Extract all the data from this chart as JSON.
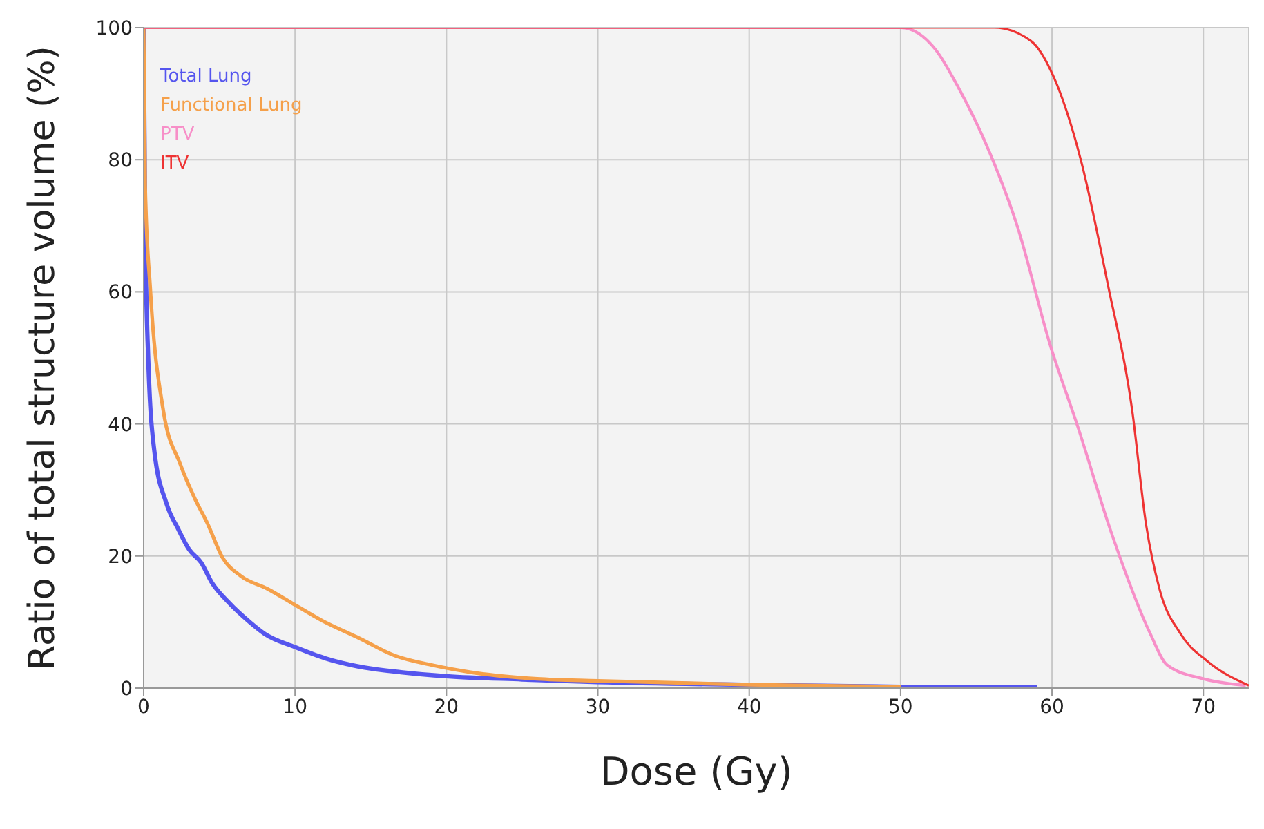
{
  "chart_data": {
    "type": "line",
    "xlabel": "Dose (Gy)",
    "ylabel": "Ratio of total structure volume (%)",
    "xlim": [
      0,
      73
    ],
    "xticks": [
      0,
      10,
      20,
      30,
      40,
      50,
      60,
      70
    ],
    "ylim": [
      0,
      100
    ],
    "yticks": [
      0,
      20,
      40,
      60,
      80,
      100
    ],
    "grid": true,
    "legend": "top left",
    "marker": "none",
    "line_style": "solid",
    "series": [
      {
        "name": "Total Lung",
        "color": "#5555ee",
        "x": [
          0,
          0.1,
          0.3,
          0.7,
          1.5,
          2.3,
          3,
          3.8,
          4.5,
          5.6,
          7,
          8,
          10,
          12,
          14.6,
          17,
          20,
          25,
          30,
          40,
          50,
          59
        ],
        "values": [
          100,
          70,
          50,
          36,
          28,
          24,
          21,
          19,
          16,
          13,
          10,
          8.2,
          6.2,
          4.5,
          3.1,
          2.4,
          1.8,
          1.3,
          0.9,
          0.5,
          0.2,
          0.1
        ]
      },
      {
        "name": "Functional Lung",
        "color": "#f5a04a",
        "x": [
          0,
          0.1,
          0.45,
          1.3,
          2.4,
          3.4,
          4.2,
          5.2,
          6.4,
          8.2,
          9.7,
          11.8,
          14.2,
          16.6,
          19,
          21.6,
          26,
          30,
          40,
          50
        ],
        "values": [
          100,
          76,
          60,
          42,
          34,
          28.6,
          25,
          19.8,
          17,
          15,
          13,
          10.2,
          7.6,
          4.9,
          3.5,
          2.4,
          1.4,
          1.1,
          0.5,
          0.2
        ]
      },
      {
        "name": "PTV",
        "color": "#f78fc8",
        "x": [
          0,
          50,
          52.3,
          53.8,
          55.9,
          57.7,
          59.9,
          61.7,
          64,
          66.5,
          67.6,
          70,
          72.8
        ],
        "values": [
          100,
          100,
          96.7,
          91,
          81,
          70,
          51.8,
          39.6,
          23,
          8.2,
          3.5,
          1.4,
          0.4
        ]
      },
      {
        "name": "ITV",
        "color": "#ee3333",
        "x": [
          0,
          56.2,
          58.6,
          60.1,
          61.9,
          63.7,
          65.3,
          66.2,
          67.1,
          68.5,
          70.3,
          73
        ],
        "values": [
          100,
          100,
          98,
          92.6,
          80,
          61,
          42,
          25,
          15,
          8.2,
          4,
          0.4
        ]
      }
    ]
  }
}
